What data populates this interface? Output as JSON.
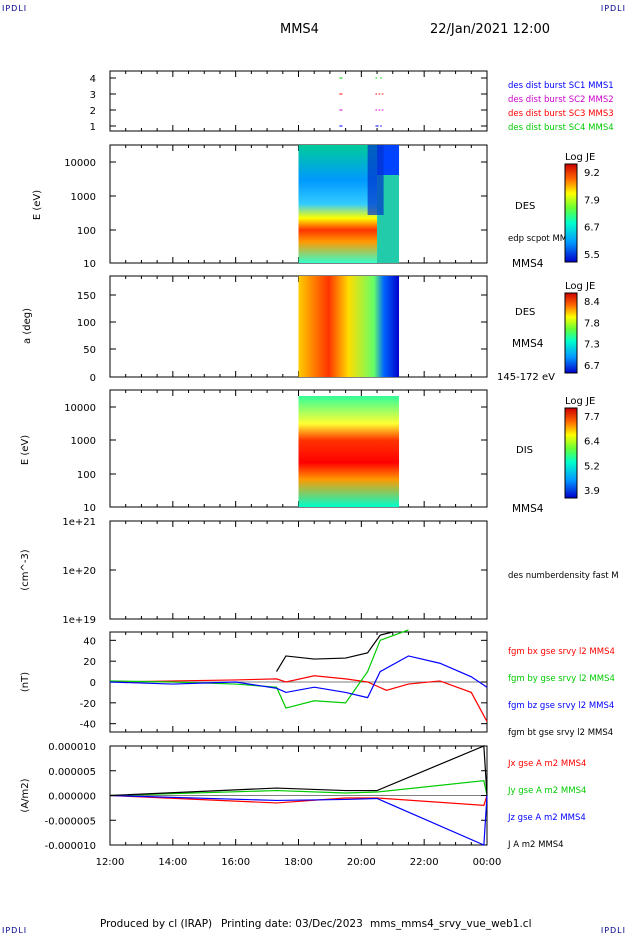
{
  "header": {
    "corner_tl": "IPDLI",
    "corner_tr": "IPDLI",
    "corner_bl": "IPDLI",
    "corner_br": "IPDLI",
    "spacecraft": "MMS4",
    "datetime": "22/Jan/2021 12:00"
  },
  "footer": {
    "produced_by": "Produced by cl (IRAP)",
    "printing_date": "Printing date: 03/Dec/2023",
    "filename": "mms_mms4_srvy_vue_web1.cl"
  },
  "colors": {
    "mms1": "#0000ff",
    "mms2": "#cc00cc",
    "mms3": "#ff0000",
    "mms4": "#00cc00",
    "bx": "#ff0000",
    "by": "#00cc00",
    "bz": "#0000ff",
    "bt": "#000000"
  },
  "x_axis": {
    "ticks": [
      "12:00",
      "14:00",
      "16:00",
      "18:00",
      "20:00",
      "22:00",
      "00:00"
    ]
  },
  "chart_data": [
    {
      "type": "scatter",
      "panel": "burst-availability",
      "yticks": [
        "1",
        "2",
        "3",
        "4"
      ],
      "legend": [
        "des dist burst SC1 MMS1",
        "des dist burst SC2 MMS2",
        "des dist burst SC3 MMS3",
        "des dist burst SC4 MMS4"
      ],
      "segments": [
        {
          "sc": 1,
          "x": [
            19.3,
            19.4
          ]
        },
        {
          "sc": 1,
          "x": [
            20.45,
            20.55
          ]
        },
        {
          "sc": 1,
          "x": [
            20.6,
            20.65
          ]
        },
        {
          "sc": 2,
          "x": [
            19.3,
            19.4
          ]
        },
        {
          "sc": 2,
          "x": [
            20.45,
            20.5
          ]
        },
        {
          "sc": 2,
          "x": [
            20.55,
            20.6
          ]
        },
        {
          "sc": 2,
          "x": [
            20.65,
            20.7
          ]
        },
        {
          "sc": 3,
          "x": [
            19.3,
            19.4
          ]
        },
        {
          "sc": 3,
          "x": [
            20.45,
            20.5
          ]
        },
        {
          "sc": 3,
          "x": [
            20.55,
            20.6
          ]
        },
        {
          "sc": 3,
          "x": [
            20.65,
            20.7
          ]
        },
        {
          "sc": 4,
          "x": [
            19.3,
            19.4
          ]
        },
        {
          "sc": 4,
          "x": [
            20.45,
            20.5
          ]
        },
        {
          "sc": 4,
          "x": [
            20.6,
            20.65
          ]
        }
      ]
    },
    {
      "type": "heatmap",
      "panel": "des-energy",
      "ylabel": "E (eV)",
      "yticks": [
        "10",
        "100",
        "1000",
        "10000"
      ],
      "label": "DES",
      "sublabel": "edp scpot MMS4",
      "sc": "MMS4",
      "colorbar": {
        "title": "Log JE",
        "ticks": [
          "9.2",
          "7.9",
          "6.7",
          "5.5"
        ]
      },
      "data_start": 18.0,
      "data_end": 21.2
    },
    {
      "type": "heatmap",
      "panel": "des-pitch",
      "ylabel": "a (deg)",
      "yticks": [
        "0",
        "50",
        "100",
        "150"
      ],
      "label": "DES",
      "sc": "MMS4",
      "energy_band": "145-172 eV",
      "colorbar": {
        "title": "Log JE",
        "ticks": [
          "8.4",
          "7.8",
          "7.3",
          "6.7"
        ]
      },
      "data_start": 18.0,
      "data_end": 21.2
    },
    {
      "type": "heatmap",
      "panel": "dis-energy",
      "ylabel": "E (eV)",
      "yticks": [
        "10",
        "100",
        "1000",
        "10000"
      ],
      "label": "DIS",
      "sc": "MMS4",
      "colorbar": {
        "title": "Log JE",
        "ticks": [
          "7.7",
          "6.4",
          "5.2",
          "3.9"
        ]
      },
      "data_start": 18.0,
      "data_end": 21.2
    },
    {
      "type": "line",
      "panel": "density",
      "ylabel": "(cm^-3)",
      "yticks": [
        "1e+19",
        "1e+20",
        "1e+21"
      ],
      "legend": [
        "des numberdensity fast M"
      ],
      "series": []
    },
    {
      "type": "line",
      "panel": "magnetic-field",
      "ylabel": "(nT)",
      "yticks": [
        "-40",
        "-20",
        "0",
        "20",
        "40"
      ],
      "ylim": [
        -48,
        48
      ],
      "legend": [
        "fgm bx gse srvy l2 MMS4",
        "fgm by gse srvy l2 MMS4",
        "fgm bz gse srvy l2 MMS4",
        "fgm bt gse srvy l2 MMS4"
      ],
      "series": [
        {
          "name": "bx",
          "x": [
            12,
            14,
            16,
            17.3,
            17.6,
            18.5,
            19.5,
            20.2,
            20.8,
            21.5,
            22.5,
            23.5,
            24
          ],
          "y": [
            0,
            1,
            2,
            3,
            0,
            6,
            3,
            0,
            -8,
            -2,
            1,
            -10,
            -38
          ]
        },
        {
          "name": "by",
          "x": [
            12,
            14,
            16,
            17.3,
            17.6,
            18.5,
            19.5,
            20.2,
            20.6,
            21.5
          ],
          "y": [
            1,
            0,
            -2,
            -5,
            -25,
            -18,
            -20,
            10,
            40,
            50
          ]
        },
        {
          "name": "bz",
          "x": [
            12,
            14,
            16,
            17.3,
            17.6,
            18.5,
            19.5,
            20.2,
            20.6,
            21.5,
            22.5,
            23.5,
            24
          ],
          "y": [
            0,
            -2,
            0,
            -6,
            -10,
            -5,
            -10,
            -15,
            10,
            25,
            18,
            5,
            -5
          ]
        },
        {
          "name": "bt",
          "x": [
            17.3,
            17.6,
            18.5,
            19.5,
            20.2,
            20.6,
            21.0
          ],
          "y": [
            10,
            25,
            22,
            23,
            28,
            45,
            48
          ]
        }
      ]
    },
    {
      "type": "line",
      "panel": "current-density",
      "ylabel": "(A/m2)",
      "yticks": [
        "-0.000010",
        "-0.000005",
        "0.000000",
        "0.000005",
        "0.000010"
      ],
      "ylim": [
        -1e-05,
        1e-05
      ],
      "legend": [
        "Jx gse A m2 MMS4",
        "Jy gse A m2 MMS4",
        "Jz gse A m2 MMS4",
        "J A m2 MMS4"
      ],
      "series": [
        {
          "name": "Jx",
          "x": [
            12,
            17.3,
            19.5,
            20.5,
            23.9,
            24
          ],
          "y": [
            0,
            -1.5e-06,
            -5e-07,
            -5e-07,
            -2e-06,
            0
          ]
        },
        {
          "name": "Jy",
          "x": [
            12,
            17.3,
            19.5,
            20.5,
            23.9,
            24
          ],
          "y": [
            0,
            1e-06,
            5e-07,
            7e-07,
            3e-06,
            0
          ]
        },
        {
          "name": "Jz",
          "x": [
            12,
            17.3,
            19.5,
            20.5,
            23.9,
            24
          ],
          "y": [
            0,
            -1e-06,
            -8e-07,
            -6e-07,
            -1e-05,
            0
          ]
        },
        {
          "name": "J",
          "x": [
            12,
            17.3,
            19.5,
            20.5,
            23.9,
            24
          ],
          "y": [
            0,
            1.5e-06,
            1e-06,
            1e-06,
            1e-05,
            0
          ]
        }
      ]
    }
  ]
}
